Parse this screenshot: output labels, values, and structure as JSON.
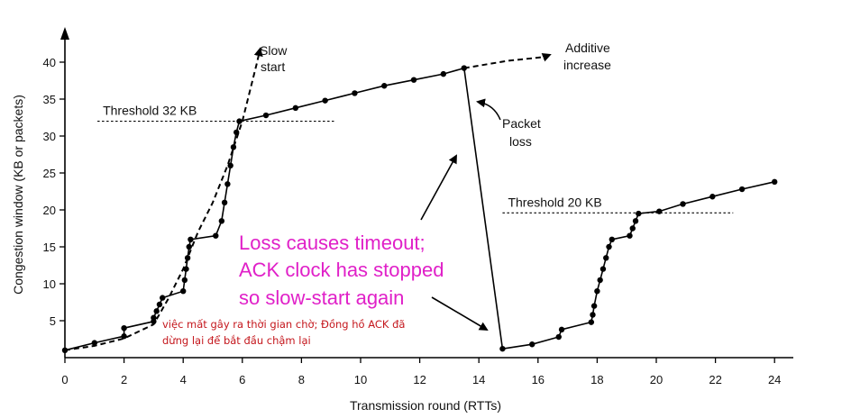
{
  "chart_data": {
    "type": "line",
    "xlabel": "Transmission round (RTTs)",
    "ylabel": "Congestion window  (KB or packets)",
    "xlim": [
      0,
      24
    ],
    "ylim": [
      0,
      40
    ],
    "x_ticks": [
      0,
      2,
      4,
      6,
      8,
      10,
      12,
      14,
      16,
      18,
      20,
      22,
      24
    ],
    "y_ticks": [
      5,
      10,
      15,
      20,
      25,
      30,
      35,
      40
    ],
    "grid": false,
    "series": [
      {
        "style": "solid",
        "points": [
          [
            0,
            1
          ],
          [
            1,
            2
          ],
          [
            2,
            2.9
          ],
          [
            2,
            4
          ],
          [
            3,
            4.9
          ],
          [
            3,
            5.4
          ],
          [
            3.1,
            6.3
          ],
          [
            3.2,
            7.2
          ],
          [
            3.3,
            8.1
          ],
          [
            4,
            9
          ],
          [
            4.05,
            10.5
          ],
          [
            4.1,
            12
          ],
          [
            4.15,
            13.5
          ],
          [
            4.2,
            15
          ],
          [
            4.25,
            16
          ],
          [
            5.1,
            16.5
          ],
          [
            5.3,
            18.5
          ],
          [
            5.4,
            21
          ],
          [
            5.5,
            23.5
          ],
          [
            5.6,
            26
          ],
          [
            5.7,
            28.5
          ],
          [
            5.8,
            30.5
          ],
          [
            5.9,
            32
          ],
          [
            6.8,
            32.8
          ],
          [
            7.8,
            33.8
          ],
          [
            8.8,
            34.8
          ],
          [
            9.8,
            35.8
          ],
          [
            10.8,
            36.8
          ],
          [
            11.8,
            37.6
          ],
          [
            12.8,
            38.4
          ],
          [
            13.5,
            39.2
          ],
          [
            14.8,
            1.2
          ],
          [
            15.8,
            1.8
          ],
          [
            16.7,
            2.8
          ],
          [
            16.8,
            3.8
          ],
          [
            17.8,
            4.8
          ],
          [
            17.85,
            5.8
          ],
          [
            17.9,
            7
          ],
          [
            18,
            9
          ],
          [
            18.1,
            10.5
          ],
          [
            18.2,
            12
          ],
          [
            18.3,
            13.5
          ],
          [
            18.4,
            15
          ],
          [
            18.5,
            16
          ],
          [
            19.1,
            16.5
          ],
          [
            19.2,
            17.5
          ],
          [
            19.3,
            18.5
          ],
          [
            19.4,
            19.5
          ],
          [
            20.1,
            19.8
          ],
          [
            20.9,
            20.8
          ],
          [
            21.9,
            21.8
          ],
          [
            22.9,
            22.8
          ],
          [
            24,
            23.8
          ]
        ]
      },
      {
        "style": "dashed",
        "points": [
          [
            0,
            1
          ],
          [
            1,
            1.6
          ],
          [
            2,
            2.6
          ],
          [
            3,
            4.5
          ],
          [
            3.5,
            8
          ],
          [
            4,
            12
          ],
          [
            4.5,
            17
          ],
          [
            5,
            21
          ],
          [
            5.5,
            26
          ],
          [
            6,
            32
          ],
          [
            6.5,
            40
          ],
          [
            6.6,
            41.8
          ]
        ]
      },
      {
        "style": "dashed",
        "points": [
          [
            13.5,
            39.2
          ],
          [
            15,
            40.2
          ],
          [
            16.2,
            40.7
          ],
          [
            16.4,
            41.0
          ]
        ]
      }
    ],
    "thresholds": [
      {
        "label": "Threshold 32 KB",
        "y": 32,
        "x_from": 1.1,
        "x_to": 9.1
      },
      {
        "label": "Threshold 20 KB",
        "y": 19.6,
        "x_from": 14.8,
        "x_to": 22.6
      }
    ],
    "annotations": {
      "slow_start": [
        "Slow",
        "start"
      ],
      "additive_increase": [
        "Additive",
        "increase"
      ],
      "packet_loss": [
        "Packet",
        "loss"
      ]
    },
    "note_lines": [
      "Loss causes timeout;",
      "ACK clock has stopped",
      "so slow-start again"
    ],
    "vi_note_lines": [
      "việc mất gây ra thời gian chờ; Đồng hồ ACK đã",
      "dừng lại để bắt đầu chậm lại"
    ]
  }
}
